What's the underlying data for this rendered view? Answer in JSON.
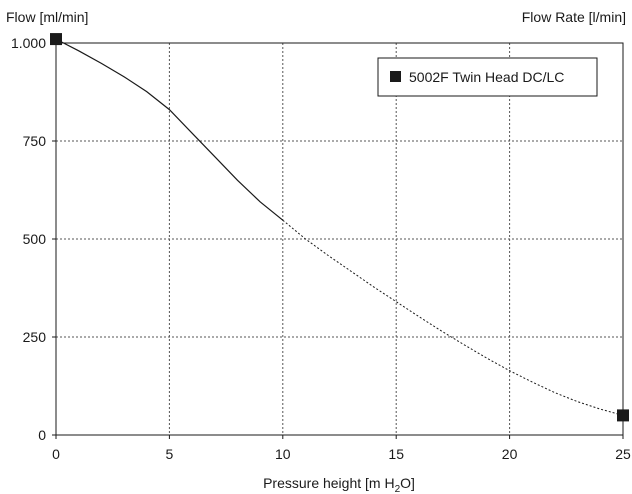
{
  "chart_data": {
    "type": "line",
    "y_label_left": "Flow [ml/min]",
    "y_label_right": "Flow Rate [l/min]",
    "x_label": "Pressure height [m H",
    "x_label_sub": "2",
    "x_label_end": "O]",
    "xlim": [
      0,
      25
    ],
    "ylim": [
      0,
      1000
    ],
    "x_ticks": [
      0,
      5,
      10,
      15,
      20,
      25
    ],
    "x_tick_labels": [
      "0",
      "5",
      "10",
      "15",
      "20",
      "25"
    ],
    "y_ticks": [
      0,
      250,
      500,
      750,
      1000
    ],
    "y_tick_labels": [
      "0",
      "250",
      "500",
      "750",
      "1.000"
    ],
    "grid": true,
    "legend_position": "top-right",
    "series": [
      {
        "name": "5002F Twin Head DC/LC",
        "color": "#1a1a1a",
        "marker": "square",
        "solid_segment": {
          "x": [
            0,
            1,
            2,
            3,
            4,
            5,
            6,
            7,
            8,
            9,
            10
          ],
          "y": [
            1010,
            980,
            948,
            914,
            876,
            830,
            770,
            710,
            650,
            595,
            548
          ]
        },
        "dashed_segment": {
          "x": [
            10,
            11,
            12,
            13,
            14,
            15,
            16,
            17,
            18,
            19,
            20,
            21,
            22,
            23,
            24,
            25
          ],
          "y": [
            548,
            500,
            458,
            418,
            378,
            340,
            302,
            265,
            230,
            196,
            164,
            135,
            108,
            85,
            66,
            50
          ]
        },
        "marker_points": {
          "x": [
            0,
            25
          ],
          "y": [
            1010,
            50
          ]
        }
      }
    ]
  }
}
